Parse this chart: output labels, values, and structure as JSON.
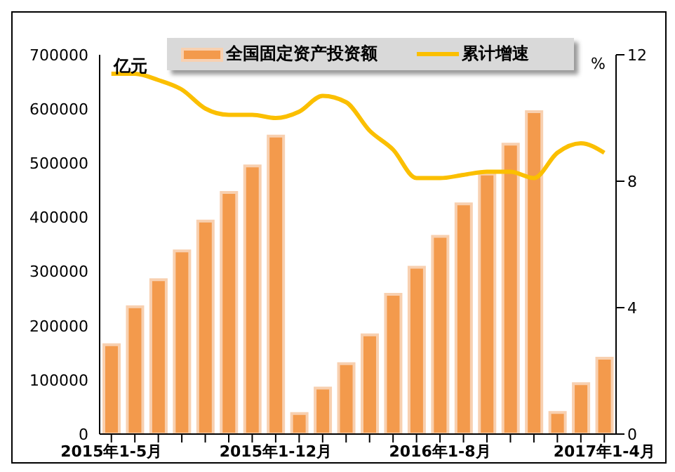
{
  "chart_data": {
    "type": "bar",
    "ylabel": "亿元",
    "y2label": "%",
    "categories": [
      "2015年1-5月",
      null,
      null,
      null,
      null,
      null,
      null,
      "2015年1-12月",
      null,
      null,
      null,
      null,
      null,
      null,
      "2016年1-8月",
      null,
      null,
      null,
      null,
      null,
      null,
      "2017年1-4月"
    ],
    "series": [
      {
        "name": "全国固定资产投资额",
        "color": "#f39a4c",
        "values": [
          165000,
          235000,
          285000,
          338000,
          393000,
          446000,
          495000,
          550000,
          38000,
          85000,
          130000,
          183000,
          258000,
          308000,
          365000,
          425000,
          480000,
          535000,
          595000,
          40000,
          93000,
          140000
        ]
      },
      {
        "name": "累计增速",
        "type": "line",
        "axis": "y2",
        "color": "#fbbf00",
        "values": [
          11.4,
          11.4,
          11.2,
          10.9,
          10.3,
          10.1,
          10.1,
          10.0,
          10.2,
          10.7,
          10.5,
          9.6,
          9.0,
          8.1,
          8.1,
          8.2,
          8.3,
          8.3,
          8.1,
          8.9,
          9.2,
          8.9
        ]
      }
    ],
    "ylim": [
      0,
      700000
    ],
    "yticks": [
      0,
      100000,
      200000,
      300000,
      400000,
      500000,
      600000,
      700000
    ],
    "y2lim": [
      0,
      12
    ],
    "y2ticks": [
      0,
      4,
      8,
      12
    ],
    "legend": "top",
    "grid": false,
    "marker": "none"
  }
}
